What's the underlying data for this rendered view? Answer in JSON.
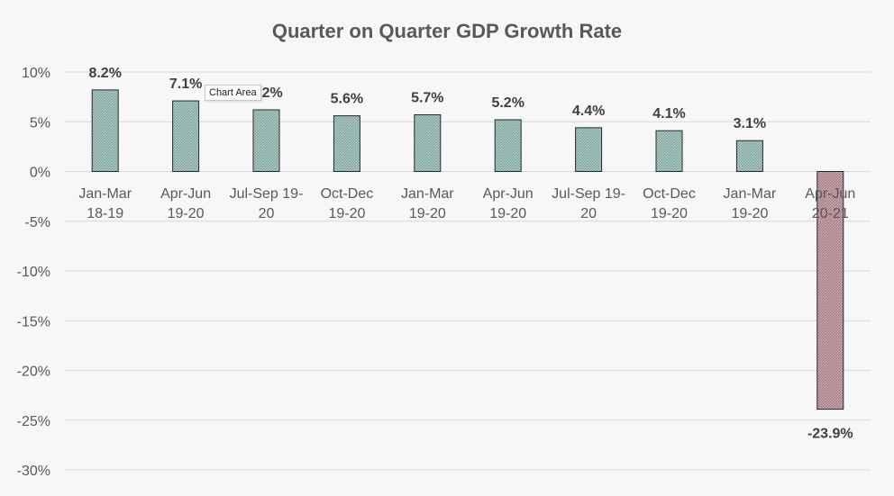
{
  "chart_data": {
    "type": "bar",
    "title": "Quarter on Quarter GDP Growth Rate",
    "xlabel": "",
    "ylabel": "",
    "categories": [
      [
        "Jan-Mar",
        "18-19"
      ],
      [
        "Apr-Jun",
        "19-20"
      ],
      [
        "Jul-Sep 19-",
        "20"
      ],
      [
        "Oct-Dec",
        "19-20"
      ],
      [
        "Jan-Mar",
        "19-20"
      ],
      [
        "Apr-Jun",
        "19-20"
      ],
      [
        "Jul-Sep 19-",
        "20"
      ],
      [
        "Oct-Dec",
        "19-20"
      ],
      [
        "Jan-Mar",
        "19-20"
      ],
      [
        "Apr-Jun",
        "20-21"
      ]
    ],
    "values": [
      8.2,
      7.1,
      6.2,
      5.6,
      5.7,
      5.2,
      4.4,
      4.1,
      3.1,
      -23.9
    ],
    "data_labels": [
      "8.2%",
      "7.1%",
      "6.2%",
      "5.6%",
      "5.7%",
      "5.2%",
      "4.4%",
      "4.1%",
      "3.1%",
      "-23.9%"
    ],
    "yticks": [
      10,
      5,
      0,
      -5,
      -10,
      -15,
      -20,
      -25,
      -30
    ],
    "ytick_labels": [
      "10%",
      "5%",
      "0%",
      "-5%",
      "-10%",
      "-15%",
      "-20%",
      "-25%",
      "-30%"
    ],
    "ylim": [
      -30,
      10
    ],
    "grid": true,
    "legend": "none",
    "colors": {
      "positive_fill": "#aac9c3",
      "negative_fill": "#c9a5ab",
      "bar_outline": "#1f2a33"
    }
  },
  "tooltip": {
    "text": "Chart Area"
  }
}
